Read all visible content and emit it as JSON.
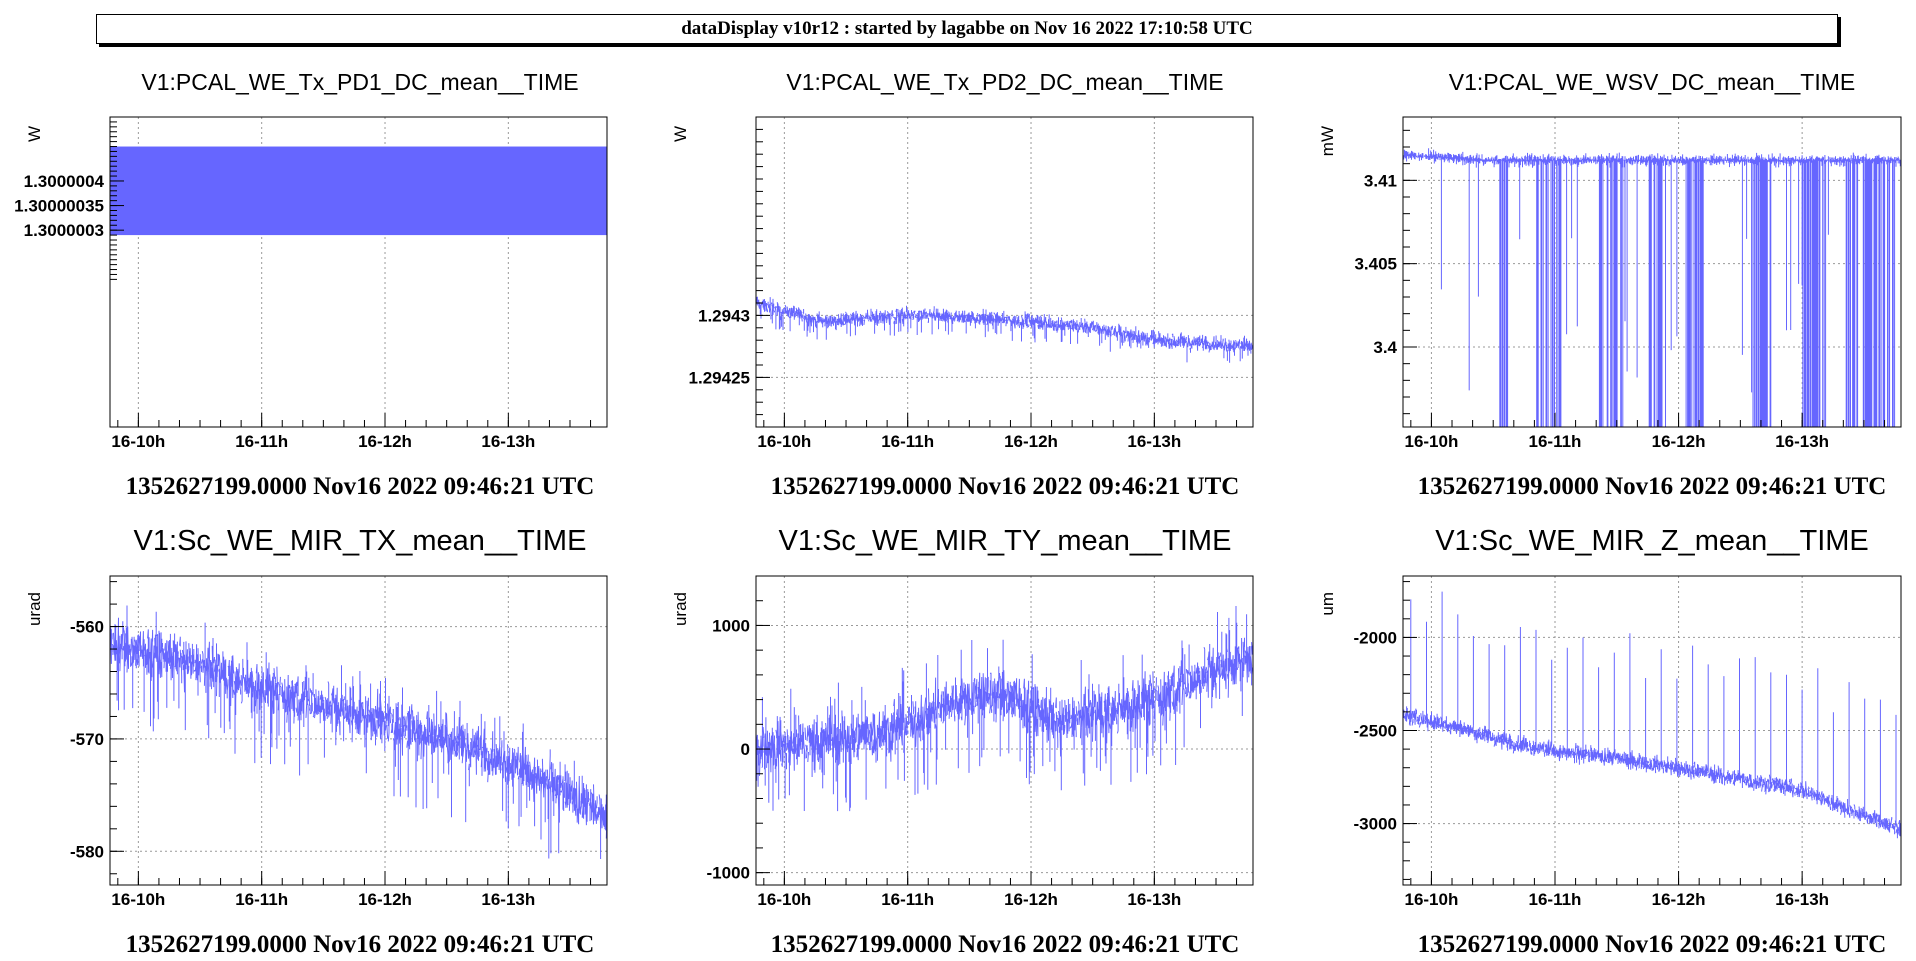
{
  "header": {
    "banner": "dataDisplay v10r12 : started by lagabbe on Nov 16 2022 17:10:58 UTC"
  },
  "colors": {
    "series": "#6666ff",
    "grid": "#9a9a9a",
    "axis": "#000000"
  },
  "chart_data": [
    {
      "type": "line",
      "title": "V1:PCAL_WE_Tx_PD1_DC_mean__TIME",
      "ylabel": "W",
      "footer": "1352627199.0000 Nov16 2022 09:46:21 UTC",
      "xtick_labels": [
        "16-10h",
        "16-11h",
        "16-12h",
        "16-13h"
      ],
      "xticks_hours": [
        10,
        11,
        12,
        13
      ],
      "xlim_hours": [
        9.77,
        13.8
      ],
      "ylim": [
        1.2999999,
        1.30000053
      ],
      "yticks": [
        1.3000003,
        1.30000035,
        1.3000004
      ],
      "ytick_labels": [
        "1.3000003",
        "1.30000035",
        "1.3000004"
      ],
      "series": [
        {
          "band": [
            1.30000029,
            1.30000047
          ],
          "base": 1.30000038,
          "amp": 9e-08,
          "noise": 1.0,
          "drift": 0,
          "spikes_down": 0,
          "spikes_up": 0
        }
      ]
    },
    {
      "type": "line",
      "title": "V1:PCAL_WE_Tx_PD2_DC_mean__TIME",
      "ylabel": "W",
      "footer": "1352627199.0000 Nov16 2022 09:46:21 UTC",
      "xtick_labels": [
        "16-10h",
        "16-11h",
        "16-12h",
        "16-13h"
      ],
      "xticks_hours": [
        10,
        11,
        12,
        13
      ],
      "xlim_hours": [
        9.77,
        13.8
      ],
      "ylim": [
        1.29421,
        1.29446
      ],
      "yticks": [
        1.29425,
        1.2943
      ],
      "ytick_labels": [
        "1.29425",
        "1.2943"
      ],
      "series": [
        {
          "trend": [
            [
              9.77,
              1.29431
            ],
            [
              10.3,
              1.294295
            ],
            [
              11.0,
              1.2943
            ],
            [
              11.5,
              1.294298
            ],
            [
              12.0,
              1.294295
            ],
            [
              12.5,
              1.29429
            ],
            [
              13.0,
              1.29428
            ],
            [
              13.8,
              1.294275
            ]
          ],
          "noise": 4.5e-06,
          "spikes_down": 1.2e-05,
          "spikes_up": 6e-06
        }
      ]
    },
    {
      "type": "line",
      "title": "V1:PCAL_WE_WSV_DC_mean__TIME",
      "ylabel": "mW",
      "footer": "1352627199.0000 Nov16 2022 09:46:21 UTC",
      "xtick_labels": [
        "16-10h",
        "16-11h",
        "16-12h",
        "16-13h"
      ],
      "xticks_hours": [
        10,
        11,
        12,
        13
      ],
      "xlim_hours": [
        9.77,
        13.8
      ],
      "ylim": [
        3.3952,
        3.4138
      ],
      "yticks": [
        3.4,
        3.405,
        3.41
      ],
      "ytick_labels": [
        "3.4",
        "3.405",
        "3.41"
      ],
      "series": [
        {
          "trend": [
            [
              9.77,
              3.4115
            ],
            [
              10.5,
              3.4112
            ],
            [
              13.8,
              3.4112
            ]
          ],
          "noise": 0.0003,
          "dropouts": true
        }
      ]
    },
    {
      "type": "line",
      "title": "V1:Sc_WE_MIR_TX_mean__TIME",
      "ylabel": "urad",
      "footer": "1352627199.0000 Nov16 2022 09:46:21 UTC",
      "xtick_labels": [
        "16-10h",
        "16-11h",
        "16-12h",
        "16-13h"
      ],
      "xticks_hours": [
        10,
        11,
        12,
        13
      ],
      "xlim_hours": [
        9.77,
        13.8
      ],
      "ylim": [
        -583,
        -555.5
      ],
      "yticks": [
        -580,
        -570,
        -560
      ],
      "ytick_labels": [
        "-580",
        "-570",
        "-560"
      ],
      "series": [
        {
          "trend": [
            [
              9.77,
              -561.5
            ],
            [
              10.5,
              -563.5
            ],
            [
              11.0,
              -565.5
            ],
            [
              11.5,
              -567
            ],
            [
              12.0,
              -568.5
            ],
            [
              12.5,
              -570
            ],
            [
              13.0,
              -572
            ],
            [
              13.5,
              -575
            ],
            [
              13.8,
              -577
            ]
          ],
          "noise": 1.6,
          "spikes_down": 5,
          "spikes_up": 3
        }
      ]
    },
    {
      "type": "line",
      "title": "V1:Sc_WE_MIR_TY_mean__TIME",
      "ylabel": "urad",
      "footer": "1352627199.0000 Nov16 2022 09:46:21 UTC",
      "xtick_labels": [
        "16-10h",
        "16-11h",
        "16-12h",
        "16-13h"
      ],
      "xticks_hours": [
        10,
        11,
        12,
        13
      ],
      "xlim_hours": [
        9.77,
        13.8
      ],
      "ylim": [
        -1100,
        1400
      ],
      "yticks": [
        -1000,
        0,
        1000
      ],
      "ytick_labels": [
        "-1000",
        "0",
        "1000"
      ],
      "series": [
        {
          "trend": [
            [
              9.77,
              0
            ],
            [
              10.2,
              50
            ],
            [
              10.6,
              100
            ],
            [
              11.0,
              200
            ],
            [
              11.4,
              400
            ],
            [
              11.8,
              450
            ],
            [
              12.2,
              200
            ],
            [
              12.6,
              300
            ],
            [
              13.0,
              400
            ],
            [
              13.4,
              600
            ],
            [
              13.8,
              750
            ]
          ],
          "noise": 160,
          "spikes_down": 450,
          "spikes_up": 350
        }
      ]
    },
    {
      "type": "line",
      "title": "V1:Sc_WE_MIR_Z_mean__TIME",
      "ylabel": "um",
      "footer": "1352627199.0000 Nov16 2022 09:46:21 UTC",
      "xtick_labels": [
        "16-10h",
        "16-11h",
        "16-12h",
        "16-13h"
      ],
      "xticks_hours": [
        10,
        11,
        12,
        13
      ],
      "xlim_hours": [
        9.77,
        13.8
      ],
      "ylim": [
        -3330,
        -1670
      ],
      "yticks": [
        -3000,
        -2500,
        -2000
      ],
      "ytick_labels": [
        "-3000",
        "-2500",
        "-2000"
      ],
      "series": [
        {
          "trend": [
            [
              9.77,
              -2420
            ],
            [
              10.2,
              -2480
            ],
            [
              10.6,
              -2560
            ],
            [
              11.0,
              -2610
            ],
            [
              11.5,
              -2650
            ],
            [
              12.0,
              -2700
            ],
            [
              12.5,
              -2760
            ],
            [
              13.0,
              -2820
            ],
            [
              13.4,
              -2930
            ],
            [
              13.8,
              -3030
            ]
          ],
          "noise": 35,
          "spikes_down": 40,
          "spikes_up": 40,
          "tall_spikes": 650
        }
      ]
    }
  ]
}
